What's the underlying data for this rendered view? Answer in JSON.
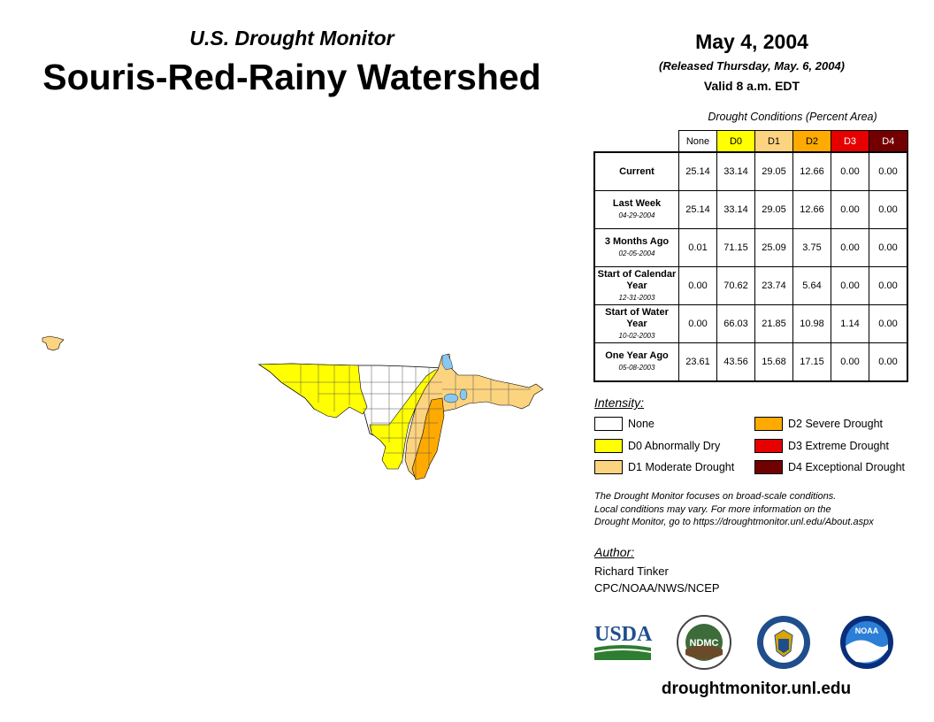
{
  "header": {
    "subtitle": "U.S. Drought Monitor",
    "title": "Souris-Red-Rainy Watershed",
    "date": "May 4, 2004",
    "released": "(Released Thursday, May. 6, 2004)",
    "valid": "Valid 8 a.m. EDT"
  },
  "table": {
    "caption": "Drought Conditions (Percent Area)",
    "columns": [
      "None",
      "D0",
      "D1",
      "D2",
      "D3",
      "D4"
    ],
    "rows": [
      {
        "label": "Current",
        "date": "",
        "values": [
          "25.14",
          "33.14",
          "29.05",
          "12.66",
          "0.00",
          "0.00"
        ]
      },
      {
        "label": "Last Week",
        "date": "04-29-2004",
        "values": [
          "25.14",
          "33.14",
          "29.05",
          "12.66",
          "0.00",
          "0.00"
        ]
      },
      {
        "label": "3 Months Ago",
        "date": "02-05-2004",
        "values": [
          "0.01",
          "71.15",
          "25.09",
          "3.75",
          "0.00",
          "0.00"
        ]
      },
      {
        "label": "Start of Calendar Year",
        "date": "12-31-2003",
        "values": [
          "0.00",
          "70.62",
          "23.74",
          "5.64",
          "0.00",
          "0.00"
        ]
      },
      {
        "label": "Start of Water Year",
        "date": "10-02-2003",
        "values": [
          "0.00",
          "66.03",
          "21.85",
          "10.98",
          "1.14",
          "0.00"
        ]
      },
      {
        "label": "One Year Ago",
        "date": "05-08-2003",
        "values": [
          "23.61",
          "43.56",
          "15.68",
          "17.15",
          "0.00",
          "0.00"
        ]
      }
    ]
  },
  "legend": {
    "title": "Intensity:",
    "items": [
      {
        "label": "None",
        "color": "#ffffff"
      },
      {
        "label": "D0 Abnormally Dry",
        "color": "#ffff00"
      },
      {
        "label": "D1 Moderate Drought",
        "color": "#fcd37f"
      },
      {
        "label": "D2 Severe Drought",
        "color": "#ffaa00"
      },
      {
        "label": "D3 Extreme Drought",
        "color": "#e60000"
      },
      {
        "label": "D4 Exceptional Drought",
        "color": "#730000"
      }
    ]
  },
  "disclaimer": {
    "line1": "The Drought Monitor focuses on broad-scale conditions.",
    "line2": "Local conditions may vary. For more information on the",
    "line3": "Drought Monitor, go to https://droughtmonitor.unl.edu/About.aspx"
  },
  "author": {
    "title": "Author:",
    "name": "Richard Tinker",
    "org": "CPC/NOAA/NWS/NCEP"
  },
  "logos": {
    "usda": "USDA",
    "ndmc": "NDMC",
    "noaa": "NOAA"
  },
  "website": "droughtmonitor.unl.edu"
}
